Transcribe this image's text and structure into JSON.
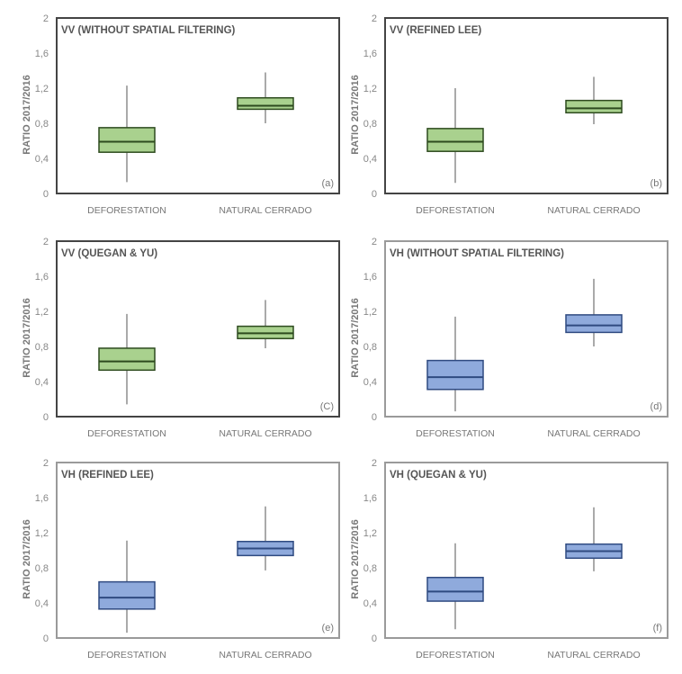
{
  "chart_data": [
    {
      "type": "box",
      "panel_label": "(a)",
      "title": "VV (WITHOUT SPATIAL FILTERING)",
      "ylabel": "RATIO  2017/2016",
      "xlabel": "",
      "ylim": [
        0,
        2
      ],
      "yticks": [
        "0",
        "0,4",
        "0,8",
        "1,2",
        "1,6",
        "2"
      ],
      "categories": [
        "DEFORESTATION",
        "NATURAL CERRADO"
      ],
      "color": "#a9d18e",
      "stroke": "#2d4a1e",
      "frame": "#444444",
      "boxes": [
        {
          "min": 0.13,
          "q1": 0.47,
          "median": 0.59,
          "q3": 0.75,
          "max": 1.23
        },
        {
          "min": 0.8,
          "q1": 0.96,
          "median": 1.0,
          "q3": 1.09,
          "max": 1.38
        }
      ]
    },
    {
      "type": "box",
      "panel_label": "(b)",
      "title": "VV (REFINED LEE)",
      "ylabel": "RATIO  2017/2016",
      "xlabel": "",
      "ylim": [
        0,
        2
      ],
      "yticks": [
        "0",
        "0,4",
        "0,8",
        "1,2",
        "1,6",
        "2"
      ],
      "categories": [
        "DEFORESTATION",
        "NATURAL CERRADO"
      ],
      "color": "#a9d18e",
      "stroke": "#2d4a1e",
      "frame": "#444444",
      "boxes": [
        {
          "min": 0.12,
          "q1": 0.48,
          "median": 0.59,
          "q3": 0.74,
          "max": 1.2
        },
        {
          "min": 0.79,
          "q1": 0.92,
          "median": 0.97,
          "q3": 1.06,
          "max": 1.33
        }
      ]
    },
    {
      "type": "box",
      "panel_label": "(C)",
      "title": "VV (QUEGAN & YU)",
      "ylabel": "RATIO  2017/2016",
      "xlabel": "",
      "ylim": [
        0,
        2
      ],
      "yticks": [
        "0",
        "0,4",
        "0,8",
        "1,2",
        "1,6",
        "2"
      ],
      "categories": [
        "DEFORESTATION",
        "NATURAL CERRADO"
      ],
      "color": "#a9d18e",
      "stroke": "#2d4a1e",
      "frame": "#444444",
      "boxes": [
        {
          "min": 0.14,
          "q1": 0.53,
          "median": 0.63,
          "q3": 0.78,
          "max": 1.17
        },
        {
          "min": 0.78,
          "q1": 0.89,
          "median": 0.95,
          "q3": 1.03,
          "max": 1.33
        }
      ]
    },
    {
      "type": "box",
      "panel_label": "(d)",
      "title": "VH (WITHOUT SPATIAL FILTERING)",
      "ylabel": "RATIO  2017/2016",
      "xlabel": "",
      "ylim": [
        0,
        2
      ],
      "yticks": [
        "0",
        "0,4",
        "0,8",
        "1,2",
        "1,6",
        "2"
      ],
      "categories": [
        "DEFORESTATION",
        "NATURAL CERRADO"
      ],
      "color": "#8faadc",
      "stroke": "#2f4a80",
      "frame": "#9a9a9a",
      "boxes": [
        {
          "min": 0.06,
          "q1": 0.31,
          "median": 0.45,
          "q3": 0.64,
          "max": 1.14
        },
        {
          "min": 0.8,
          "q1": 0.96,
          "median": 1.04,
          "q3": 1.16,
          "max": 1.57
        }
      ]
    },
    {
      "type": "box",
      "panel_label": "(e)",
      "title": "VH (REFINED LEE)",
      "ylabel": "RATIO  2017/2016",
      "xlabel": "",
      "ylim": [
        0,
        2
      ],
      "yticks": [
        "0",
        "0,4",
        "0,8",
        "1,2",
        "1,6",
        "2"
      ],
      "categories": [
        "DEFORESTATION",
        "NATURAL CERRADO"
      ],
      "color": "#8faadc",
      "stroke": "#2f4a80",
      "frame": "#9a9a9a",
      "boxes": [
        {
          "min": 0.06,
          "q1": 0.33,
          "median": 0.46,
          "q3": 0.64,
          "max": 1.11
        },
        {
          "min": 0.77,
          "q1": 0.94,
          "median": 1.02,
          "q3": 1.1,
          "max": 1.5
        }
      ]
    },
    {
      "type": "box",
      "panel_label": "(f)",
      "title": "VH (QUEGAN & YU)",
      "ylabel": "RATIO  2017/2016",
      "xlabel": "",
      "ylim": [
        0,
        2
      ],
      "yticks": [
        "0",
        "0,4",
        "0,8",
        "1,2",
        "1,6",
        "2"
      ],
      "categories": [
        "DEFORESTATION",
        "NATURAL CERRADO"
      ],
      "color": "#8faadc",
      "stroke": "#2f4a80",
      "frame": "#9a9a9a",
      "boxes": [
        {
          "min": 0.1,
          "q1": 0.42,
          "median": 0.53,
          "q3": 0.69,
          "max": 1.08
        },
        {
          "min": 0.76,
          "q1": 0.91,
          "median": 0.99,
          "q3": 1.07,
          "max": 1.49
        }
      ]
    }
  ]
}
